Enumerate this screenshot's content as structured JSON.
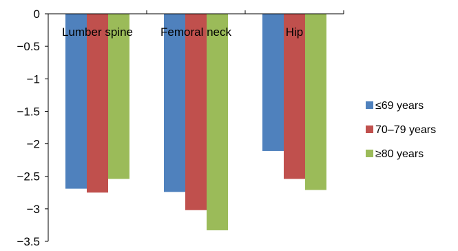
{
  "chart_data": {
    "type": "bar",
    "categories": [
      "Lumber spine",
      "Femoral neck",
      "Hip"
    ],
    "series": [
      {
        "name": "≤69 years",
        "color": "#4F81BD",
        "values": [
          -2.69,
          -2.74,
          -2.11
        ]
      },
      {
        "name": "70–79 years",
        "color": "#C0504D",
        "values": [
          -2.75,
          -3.02,
          -2.54
        ]
      },
      {
        "name": "≥80 years",
        "color": "#9BBB59",
        "values": [
          -2.54,
          -3.33,
          -2.71
        ]
      }
    ],
    "yticks": [
      "0",
      "−0.5",
      "−1",
      "−1.5",
      "−2",
      "−2.5",
      "−3",
      "−3.5"
    ],
    "ytick_values": [
      0,
      -0.5,
      -1,
      -1.5,
      -2,
      -2.5,
      -3,
      -3.5
    ],
    "ylim": [
      -3.5,
      0
    ],
    "legend_position": "right",
    "grid": false,
    "title": "",
    "xlabel": "",
    "ylabel": ""
  }
}
